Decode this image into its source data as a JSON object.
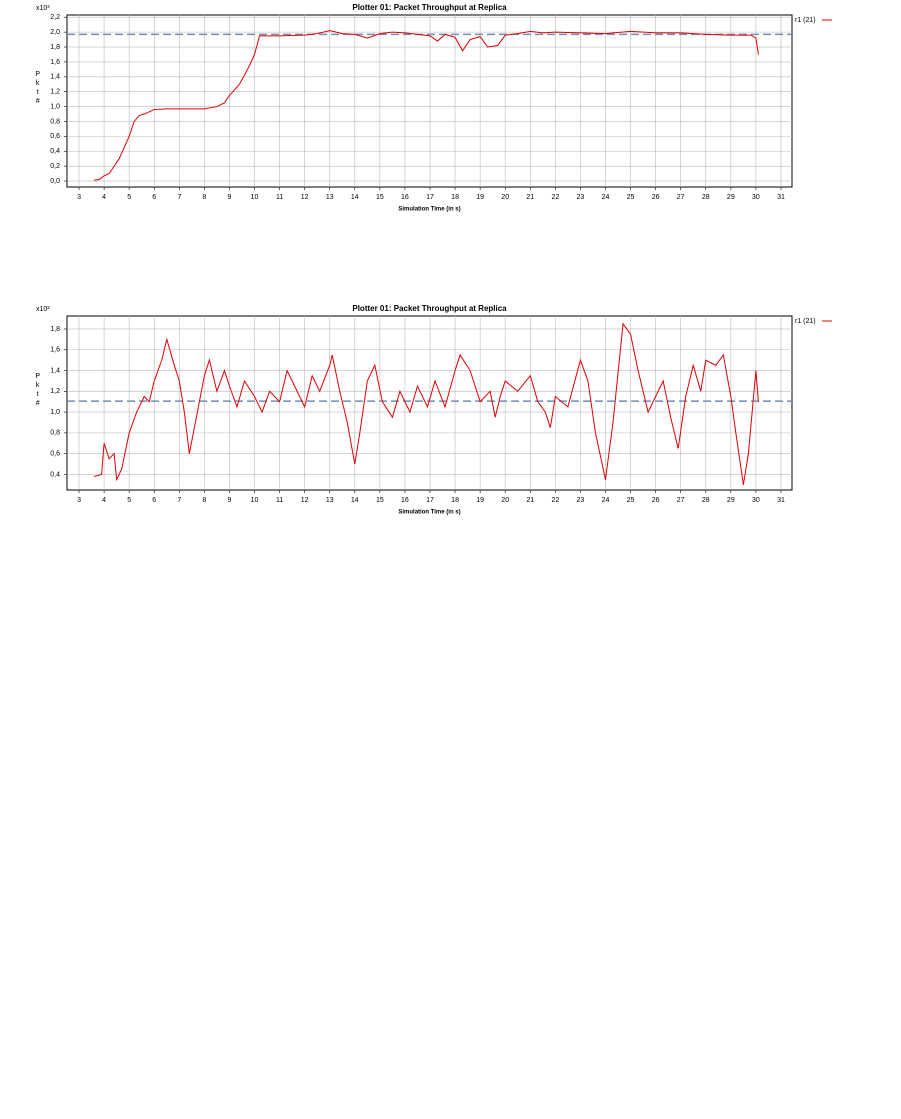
{
  "chart_data": [
    {
      "type": "line",
      "title": "Plotter 01: Packet Throughput at Replica",
      "x_label": "Simulation Time (in s)",
      "y_label": "Pkt#",
      "y_multiplier": "x10³",
      "xlim": [
        2.52,
        31.44
      ],
      "xticks": [
        3,
        4,
        5,
        6,
        7,
        8,
        9,
        10,
        11,
        12,
        13,
        14,
        15,
        16,
        17,
        18,
        19,
        20,
        21,
        22,
        23,
        24,
        25,
        26,
        27,
        28,
        29,
        30,
        31
      ],
      "ylim": [
        -0.08,
        2.23
      ],
      "yticks": [
        {
          "value": 0,
          "label": "0,0"
        },
        {
          "value": 0.2,
          "label": "0,2"
        },
        {
          "value": 0.4,
          "label": "0,4"
        },
        {
          "value": 0.6,
          "label": "0,6"
        },
        {
          "value": 0.8,
          "label": "0,8"
        },
        {
          "value": 1.0,
          "label": "1,0"
        },
        {
          "value": 1.2,
          "label": "1,2"
        },
        {
          "value": 1.4,
          "label": "1,4"
        },
        {
          "value": 1.6,
          "label": "1,6"
        },
        {
          "value": 1.8,
          "label": "1,8"
        },
        {
          "value": 2.0,
          "label": "2,0"
        },
        {
          "value": 2.2,
          "label": "2,2"
        }
      ],
      "grid": true,
      "reference_line": 1.97,
      "reference_color": "#6f8fb8",
      "legend": "right",
      "x": [
        3.6,
        3.8,
        4.0,
        4.2,
        4.4,
        4.6,
        4.8,
        5.0,
        5.2,
        5.4,
        5.6,
        5.8,
        6.0,
        6.5,
        7,
        7.5,
        8,
        8.5,
        8.8,
        9,
        9.4,
        9.8,
        10,
        10.2,
        11,
        12,
        12.5,
        13,
        13.5,
        14,
        14.5,
        15,
        15.5,
        16,
        16.5,
        17,
        17.3,
        17.6,
        18,
        18.3,
        18.6,
        19,
        19.3,
        19.7,
        20,
        20.5,
        21,
        21.5,
        22,
        23,
        24,
        25,
        26,
        27,
        28,
        29,
        29.8,
        30,
        30.1
      ],
      "series": [
        {
          "name": "r1 (21)",
          "color": "#e00000",
          "values": [
            0.01,
            0.02,
            0.07,
            0.1,
            0.2,
            0.3,
            0.45,
            0.6,
            0.8,
            0.88,
            0.9,
            0.93,
            0.96,
            0.97,
            0.97,
            0.97,
            0.97,
            1.0,
            1.05,
            1.15,
            1.3,
            1.55,
            1.7,
            1.95,
            1.95,
            1.96,
            1.98,
            2.02,
            1.98,
            1.97,
            1.92,
            1.98,
            2.0,
            1.99,
            1.97,
            1.95,
            1.88,
            1.97,
            1.93,
            1.75,
            1.9,
            1.94,
            1.8,
            1.82,
            1.96,
            1.98,
            2.01,
            1.99,
            2.0,
            1.99,
            1.98,
            2.01,
            1.99,
            1.99,
            1.97,
            1.96,
            1.96,
            1.92,
            1.7
          ]
        }
      ]
    },
    {
      "type": "line",
      "title": "Plotter 01: Packet Throughput at Replica",
      "x_label": "Simulation Time (in s)",
      "y_label": "Pkt#",
      "y_multiplier": "x10²",
      "xlim": [
        2.52,
        31.44
      ],
      "xticks": [
        3,
        4,
        5,
        6,
        7,
        8,
        9,
        10,
        11,
        12,
        13,
        14,
        15,
        16,
        17,
        18,
        19,
        20,
        21,
        22,
        23,
        24,
        25,
        26,
        27,
        28,
        29,
        30,
        31
      ],
      "ylim": [
        0.25,
        1.925
      ],
      "yticks": [
        {
          "value": 0.4,
          "label": "0,4"
        },
        {
          "value": 0.6,
          "label": "0,6"
        },
        {
          "value": 0.8,
          "label": "0,8"
        },
        {
          "value": 1.0,
          "label": "1,0"
        },
        {
          "value": 1.2,
          "label": "1,2"
        },
        {
          "value": 1.4,
          "label": "1,4"
        },
        {
          "value": 1.6,
          "label": "1,6"
        },
        {
          "value": 1.8,
          "label": "1,8"
        }
      ],
      "grid": true,
      "reference_line": 1.105,
      "reference_color": "#6f8fb8",
      "legend": "right",
      "x": [
        3.6,
        3.9,
        4.0,
        4.2,
        4.4,
        4.5,
        4.7,
        5.0,
        5.3,
        5.6,
        5.8,
        6.0,
        6.3,
        6.5,
        6.8,
        7,
        7.2,
        7.4,
        7.6,
        7.8,
        8.0,
        8.2,
        8.5,
        8.8,
        9,
        9.3,
        9.6,
        10,
        10.3,
        10.6,
        11,
        11.3,
        11.6,
        12,
        12.3,
        12.6,
        13,
        13.1,
        13.4,
        13.7,
        14,
        14.2,
        14.5,
        14.8,
        15.1,
        15.5,
        15.8,
        16.2,
        16.5,
        16.9,
        17.2,
        17.6,
        18,
        18.2,
        18.6,
        19,
        19.4,
        19.6,
        19.8,
        20,
        20.5,
        21,
        21.3,
        21.6,
        21.8,
        22,
        22.5,
        23,
        23.3,
        23.6,
        24,
        24.3,
        24.7,
        25,
        25.3,
        25.7,
        26,
        26.3,
        26.6,
        26.9,
        27.2,
        27.5,
        27.8,
        28,
        28.4,
        28.7,
        29,
        29.2,
        29.5,
        29.7,
        30,
        30.1
      ],
      "series": [
        {
          "name": "r1 (21)",
          "color": "#e00000",
          "values": [
            0.38,
            0.4,
            0.7,
            0.55,
            0.6,
            0.35,
            0.45,
            0.8,
            1.0,
            1.15,
            1.1,
            1.3,
            1.5,
            1.7,
            1.45,
            1.3,
            1.0,
            0.6,
            0.85,
            1.1,
            1.35,
            1.5,
            1.2,
            1.4,
            1.25,
            1.05,
            1.3,
            1.15,
            1.0,
            1.2,
            1.1,
            1.4,
            1.25,
            1.05,
            1.35,
            1.2,
            1.45,
            1.55,
            1.2,
            0.9,
            0.5,
            0.8,
            1.3,
            1.45,
            1.1,
            0.95,
            1.2,
            1.0,
            1.25,
            1.05,
            1.3,
            1.05,
            1.4,
            1.55,
            1.4,
            1.1,
            1.2,
            0.95,
            1.15,
            1.3,
            1.2,
            1.35,
            1.1,
            1.0,
            0.85,
            1.15,
            1.05,
            1.5,
            1.3,
            0.8,
            0.35,
            0.9,
            1.85,
            1.75,
            1.4,
            1.0,
            1.15,
            1.3,
            0.95,
            0.65,
            1.15,
            1.45,
            1.2,
            1.5,
            1.45,
            1.55,
            1.15,
            0.8,
            0.3,
            0.6,
            1.4,
            1.1
          ]
        }
      ]
    }
  ]
}
